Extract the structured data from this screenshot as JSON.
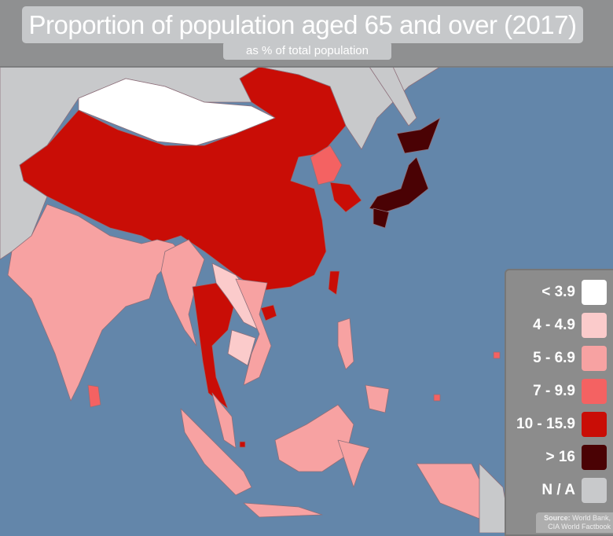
{
  "title": "Proportion of population aged 65 and over (2017)",
  "subtitle": "as % of total population",
  "colors": {
    "ocean": "#6386aa",
    "na_land": "#c8c9cb",
    "border": "#8d6f7a"
  },
  "legend": [
    {
      "label": "< 3.9",
      "color": "#ffffff"
    },
    {
      "label": "4 - 4.9",
      "color": "#fbcbcb"
    },
    {
      "label": "5 - 6.9",
      "color": "#f7a2a2"
    },
    {
      "label": "7 - 9.9",
      "color": "#f46262"
    },
    {
      "label": "10 - 15.9",
      "color": "#c90d06"
    },
    {
      "label": "> 16",
      "color": "#4a0204"
    },
    {
      "label": "N / A",
      "color": "#c8c9cb"
    }
  ],
  "source": {
    "label": "Source:",
    "text": "World Bank, CIA World Factbook"
  }
}
